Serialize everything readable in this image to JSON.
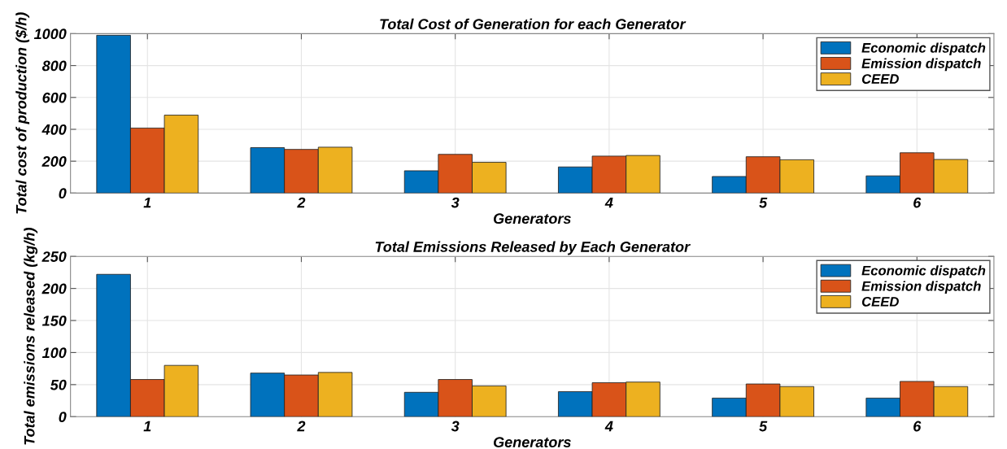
{
  "chart_data": [
    {
      "type": "bar",
      "title": "Total Cost of Generation for each Generator",
      "xlabel": "Generators",
      "ylabel": "Total cost of production ($/h)",
      "categories": [
        "1",
        "2",
        "3",
        "4",
        "5",
        "6"
      ],
      "series": [
        {
          "name": "Economic dispatch",
          "color": "#0072bd",
          "values": [
            990,
            285,
            140,
            164,
            104,
            108
          ]
        },
        {
          "name": "Emission dispatch",
          "color": "#d95319",
          "values": [
            408,
            274,
            243,
            232,
            228,
            253
          ]
        },
        {
          "name": "CEED",
          "color": "#edb120",
          "values": [
            489,
            288,
            193,
            236,
            209,
            211
          ]
        }
      ],
      "ylim": [
        0,
        1000
      ],
      "yticks": [
        0,
        200,
        400,
        600,
        800,
        1000
      ],
      "grid": true,
      "legend": "top right"
    },
    {
      "type": "bar",
      "title": "Total Emissions Released by Each Generator",
      "xlabel": "Generators",
      "ylabel": "Total emissions released (kg/h)",
      "categories": [
        "1",
        "2",
        "3",
        "4",
        "5",
        "6"
      ],
      "series": [
        {
          "name": "Economic dispatch",
          "color": "#0072bd",
          "values": [
            222,
            68,
            38,
            39,
            29,
            29
          ]
        },
        {
          "name": "Emission dispatch",
          "color": "#d95319",
          "values": [
            58,
            65,
            58,
            53,
            51,
            55
          ]
        },
        {
          "name": "CEED",
          "color": "#edb120",
          "values": [
            80,
            69,
            48,
            54,
            47,
            47
          ]
        }
      ],
      "ylim": [
        0,
        250
      ],
      "yticks": [
        0,
        50,
        100,
        150,
        200,
        250
      ],
      "grid": true,
      "legend": "top right"
    }
  ]
}
